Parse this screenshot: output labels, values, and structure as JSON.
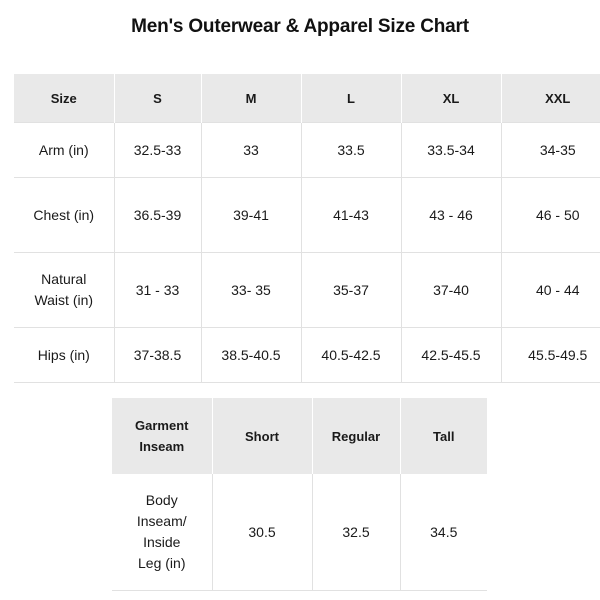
{
  "title": "Men's Outerwear & Apparel Size Chart",
  "size_table": {
    "header": [
      "Size",
      "S",
      "M",
      "L",
      "XL",
      "XXL"
    ],
    "rows": [
      {
        "label_lines": [
          "Arm (in)"
        ],
        "values": [
          "32.5-33",
          "33",
          "33.5",
          "33.5-34",
          "34-35"
        ]
      },
      {
        "label_lines": [
          "Chest (in)"
        ],
        "values": [
          "36.5-39",
          "39-41",
          "41-43",
          "43 - 46",
          "46 - 50"
        ]
      },
      {
        "label_lines": [
          "Natural",
          "Waist (in)"
        ],
        "values": [
          "31 - 33",
          "33- 35",
          "35-37",
          "37-40",
          "40 - 44"
        ]
      },
      {
        "label_lines": [
          "Hips (in)"
        ],
        "values": [
          "37-38.5",
          "38.5-40.5",
          "40.5-42.5",
          "42.5-45.5",
          "45.5-49.5"
        ]
      }
    ]
  },
  "inseam_table": {
    "header_label_lines": [
      "Garment",
      "Inseam"
    ],
    "header": [
      "Short",
      "Regular",
      "Tall"
    ],
    "row_label_lines": [
      "Body",
      "Inseam/",
      "Inside",
      "Leg (in)"
    ],
    "values": [
      "30.5",
      "32.5",
      "34.5"
    ]
  }
}
